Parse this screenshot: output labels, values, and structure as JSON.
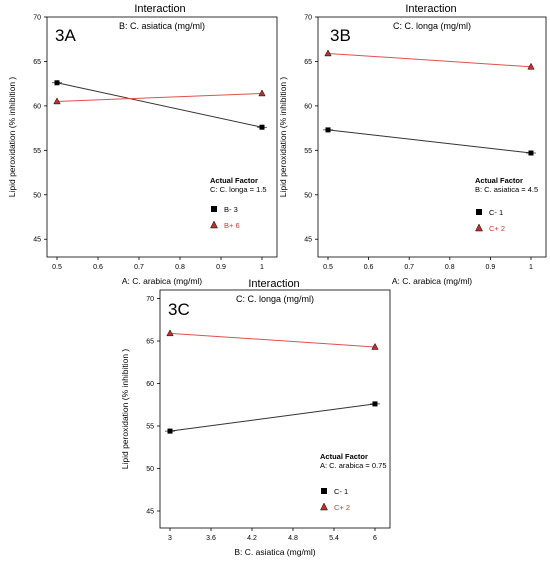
{
  "chart_data": [
    {
      "type": "line",
      "panel_label": "3A",
      "title": "Interaction",
      "factor_label": "B: C. asiatica  (mg/ml)",
      "xlabel": "A: C. arabica (mg/ml)",
      "ylabel": "Lipid peroxidation (% inhibition )",
      "xlim": [
        0.5,
        1
      ],
      "ylim": [
        43,
        70
      ],
      "x_ticks": [
        "0.5",
        "0.6",
        "0.7",
        "0.8",
        "0.9",
        "1"
      ],
      "y_ticks": [
        "45",
        "50",
        "55",
        "60",
        "65",
        "70"
      ],
      "x": [
        0.5,
        1
      ],
      "series": [
        {
          "name": "B- 3",
          "values": [
            62.6,
            57.6
          ],
          "color": "#333333",
          "marker": "square"
        },
        {
          "name": "B+ 6",
          "values": [
            60.5,
            61.4
          ],
          "color": "#e05050",
          "marker": "triangle"
        }
      ],
      "actual_factor_title": "Actual Factor",
      "actual_factor_value": "C: C. longa = 1.5",
      "grid": false
    },
    {
      "type": "line",
      "panel_label": "3B",
      "title": "Interaction",
      "factor_label": "C: C. longa (mg/ml)",
      "xlabel": "A: C. arabica (mg/ml)",
      "ylabel": "Lipid peroxidation (% inhibition )",
      "xlim": [
        0.5,
        1
      ],
      "ylim": [
        43,
        70
      ],
      "x_ticks": [
        "0.5",
        "0.6",
        "0.7",
        "0.8",
        "0.9",
        "1"
      ],
      "y_ticks": [
        "45",
        "50",
        "55",
        "60",
        "65",
        "70"
      ],
      "x": [
        0.5,
        1
      ],
      "series": [
        {
          "name": "C- 1",
          "values": [
            57.3,
            54.7
          ],
          "color": "#333333",
          "marker": "square"
        },
        {
          "name": "C+ 2",
          "values": [
            65.9,
            64.4
          ],
          "color": "#e05050",
          "marker": "triangle"
        }
      ],
      "actual_factor_title": "Actual Factor",
      "actual_factor_value": "B: C. asiatica = 4.5",
      "grid": false
    },
    {
      "type": "line",
      "panel_label": "3C",
      "title": "Interaction",
      "factor_label": "C: C. longa (mg/ml)",
      "xlabel": "B: C. asiatica  (mg/ml)",
      "ylabel": "Lipid peroxidation (% inhibition )",
      "xlim": [
        3,
        6
      ],
      "ylim": [
        43,
        71
      ],
      "x_ticks": [
        "3",
        "3.6",
        "4.2",
        "4.8",
        "5.4",
        "6"
      ],
      "y_ticks": [
        "45",
        "50",
        "55",
        "60",
        "65",
        "70"
      ],
      "x": [
        3,
        6
      ],
      "series": [
        {
          "name": "C- 1",
          "values": [
            54.4,
            57.6
          ],
          "color": "#333333",
          "marker": "square"
        },
        {
          "name": "C+ 2",
          "values": [
            65.9,
            64.3
          ],
          "color": "#e05050",
          "marker": "triangle"
        }
      ],
      "actual_factor_title": "Actual Factor",
      "actual_factor_value": "A: C. arabica = 0.75",
      "grid": false
    }
  ]
}
